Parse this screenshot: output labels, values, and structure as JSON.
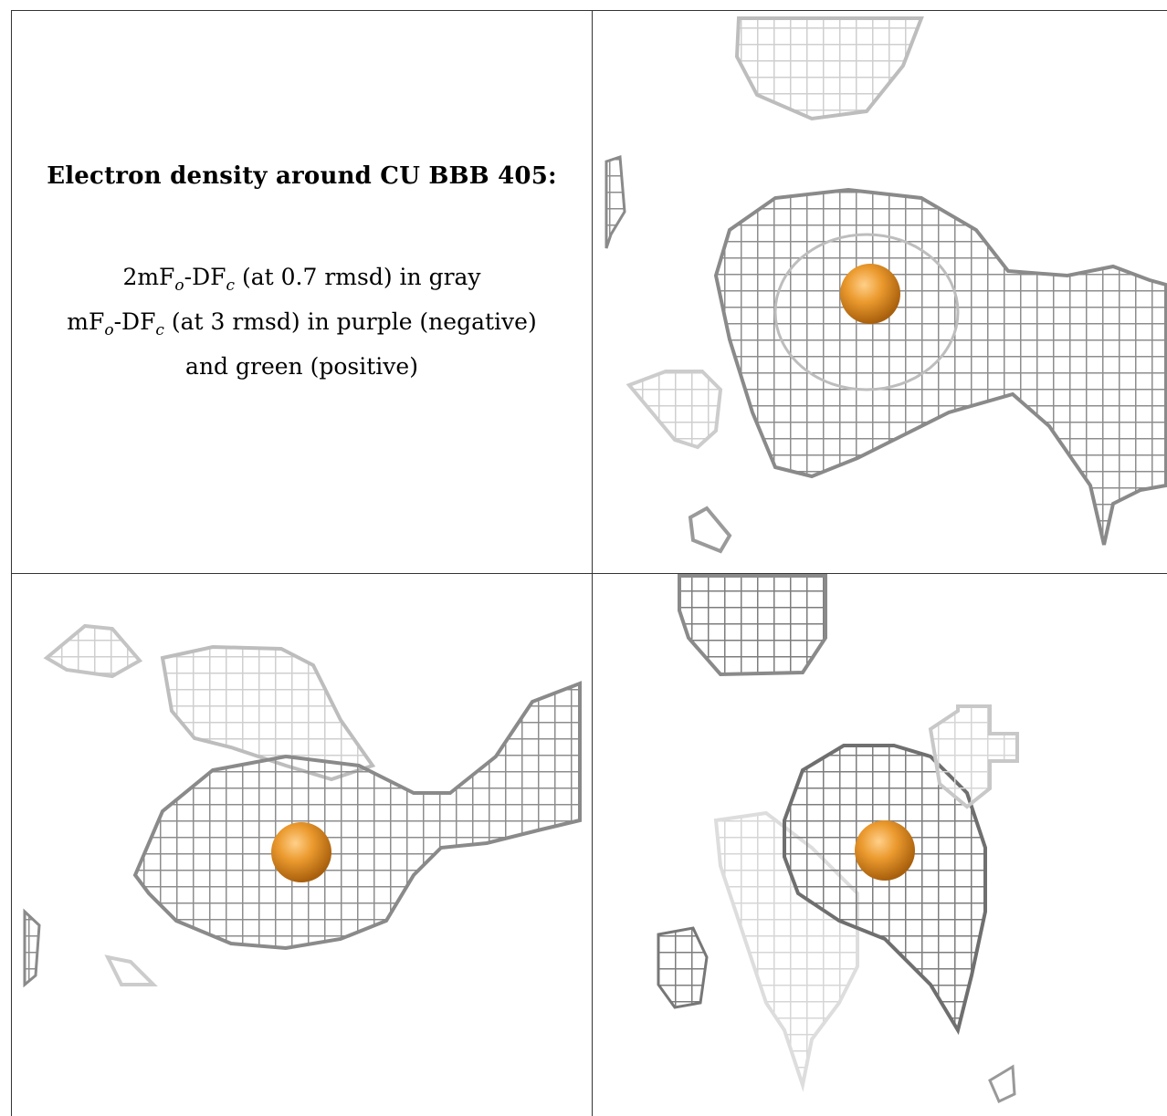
{
  "caption": {
    "title": "Electron density around CU BBB 405:",
    "lines": [
      "2mFo-DFc (at 0.7 rmsd) in gray",
      "mFo-DFc (at 3 rmsd) in purple (negative)",
      "and green (positive)"
    ]
  },
  "colors": {
    "mesh_gray": "#9a9a9a",
    "mesh_light": "#d4d4d4",
    "mesh_dark": "#6b6b6b",
    "atom_orange": "#e08a1e",
    "border": "#333333"
  },
  "panels": [
    {
      "name": "view-1",
      "atom": "CU"
    },
    {
      "name": "view-2",
      "atom": "CU"
    },
    {
      "name": "view-3",
      "atom": "CU"
    }
  ]
}
